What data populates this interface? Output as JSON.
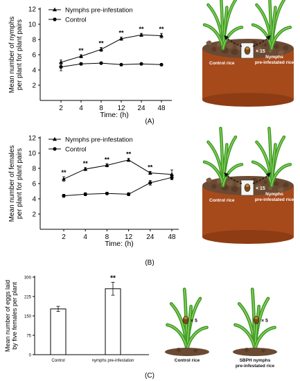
{
  "chart_data": [
    {
      "type": "line",
      "panel_label": "(A)",
      "ylabel": "Mean number of nymphs\nper plant for plant pairs",
      "xlabel": "Time: (h)",
      "ylim": [
        0,
        12
      ],
      "yticks": [
        2,
        4,
        6,
        8,
        10,
        12
      ],
      "categories": [
        "2",
        "4",
        "8",
        "12",
        "24",
        "48"
      ],
      "legend_position": "top-left",
      "series": [
        {
          "name": "Nymphs pre-infestation",
          "marker": "triangle",
          "values": [
            5.0,
            5.8,
            6.7,
            8.1,
            8.6,
            8.5
          ],
          "errors": [
            0.3,
            0.2,
            0.25,
            0.2,
            0.2,
            0.3
          ]
        },
        {
          "name": "Control",
          "marker": "circle",
          "values": [
            4.4,
            4.8,
            4.9,
            4.7,
            4.8,
            4.7
          ],
          "errors": [
            0.5,
            0.15,
            0.1,
            0.1,
            0.1,
            0.1
          ]
        }
      ],
      "significance": [
        "",
        "**",
        "**",
        "**",
        "**",
        "**"
      ]
    },
    {
      "type": "line",
      "panel_label": "(B)",
      "ylabel": "Mean number of females\nper plant for plant pairs",
      "xlabel": "Time: (h)",
      "ylim": [
        0,
        12
      ],
      "yticks": [
        2,
        4,
        6,
        8,
        10,
        12
      ],
      "categories": [
        "2",
        "4",
        "8",
        "12",
        "24",
        "48"
      ],
      "legend_position": "top-left",
      "series": [
        {
          "name": "Nymphs pre-infestation",
          "marker": "triangle",
          "values": [
            6.6,
            7.9,
            8.4,
            9.1,
            7.4,
            7.2
          ],
          "errors": [
            0.3,
            0.2,
            0.2,
            0.2,
            0.2,
            0.6
          ]
        },
        {
          "name": "Control",
          "marker": "circle",
          "values": [
            4.4,
            4.6,
            4.7,
            4.6,
            6.1,
            6.8
          ],
          "errors": [
            0.2,
            0.2,
            0.15,
            0.2,
            0.3,
            0.3
          ]
        }
      ],
      "significance": [
        "**",
        "**",
        "**",
        "**",
        "**",
        ""
      ]
    },
    {
      "type": "bar",
      "panel_label": "(C)",
      "ylabel": "Mean number of eggs laid\nby five females per plant",
      "ylim": [
        0,
        300
      ],
      "yticks": [
        0,
        75,
        150,
        225,
        300
      ],
      "categories": [
        "Control",
        "nymphs pre-infestation"
      ],
      "values": [
        177,
        255
      ],
      "errors": [
        10,
        25
      ],
      "significance": [
        "",
        "**"
      ]
    }
  ],
  "illustrations": {
    "A": {
      "left_label": "Control rice",
      "right_label": "Nymphs\npre-infestated rice",
      "count": "× 15"
    },
    "B": {
      "left_label": "Control rice",
      "right_label": "Nymphs\npre-infestated rice",
      "count": "× 15"
    },
    "C": {
      "left_label": "Control rice",
      "right_label": "SBPH nymphs\npre-infestated rice",
      "count": "× 5"
    }
  }
}
